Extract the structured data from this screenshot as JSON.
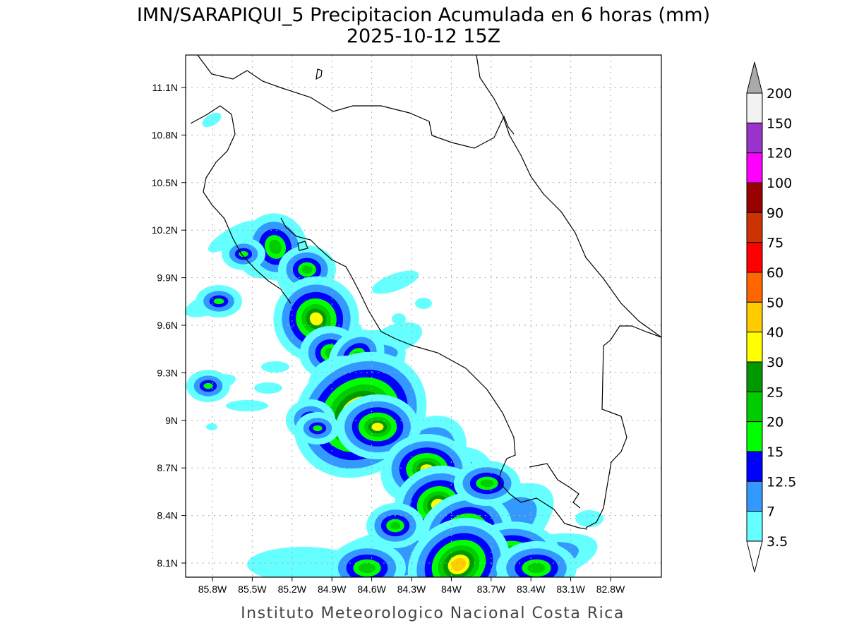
{
  "title": {
    "line1": "IMN/SARAPIQUI_5 Precipitacion Acumulada en 6 horas (mm)",
    "line2": "2025-10-12 15Z"
  },
  "credit": "Instituto Meteorologico Nacional Costa Rica",
  "map": {
    "projection": "lat-lon",
    "grid": true,
    "lon_ticks": [
      "85.8W",
      "85.5W",
      "85.2W",
      "84.9W",
      "84.6W",
      "84.3W",
      "84W",
      "83.7W",
      "83.4W",
      "83.1W",
      "82.8W"
    ],
    "lat_ticks": [
      "11.1N",
      "10.8N",
      "10.5N",
      "10.2N",
      "9.9N",
      "9.6N",
      "9.3N",
      "9N",
      "8.7N",
      "8.4N",
      "8.1N"
    ],
    "variable": "6-hour accumulated precipitation (mm)",
    "max_region": "near 9.1N 84.7W"
  },
  "colorbar": {
    "labels": [
      "200",
      "150",
      "120",
      "100",
      "90",
      "75",
      "60",
      "50",
      "40",
      "30",
      "25",
      "20",
      "15",
      "12.5",
      "7",
      "3.5"
    ],
    "colors": [
      "#f2f2f2",
      "#9933cc",
      "#ff00ff",
      "#990000",
      "#cc3300",
      "#ff0000",
      "#ff6600",
      "#ffcc00",
      "#ffff00",
      "#009900",
      "#00cc00",
      "#00ff00",
      "#0000ff",
      "#3399ff",
      "#66ffff"
    ],
    "over_color": "#aaaaaa",
    "under_color": "#ffffff"
  }
}
